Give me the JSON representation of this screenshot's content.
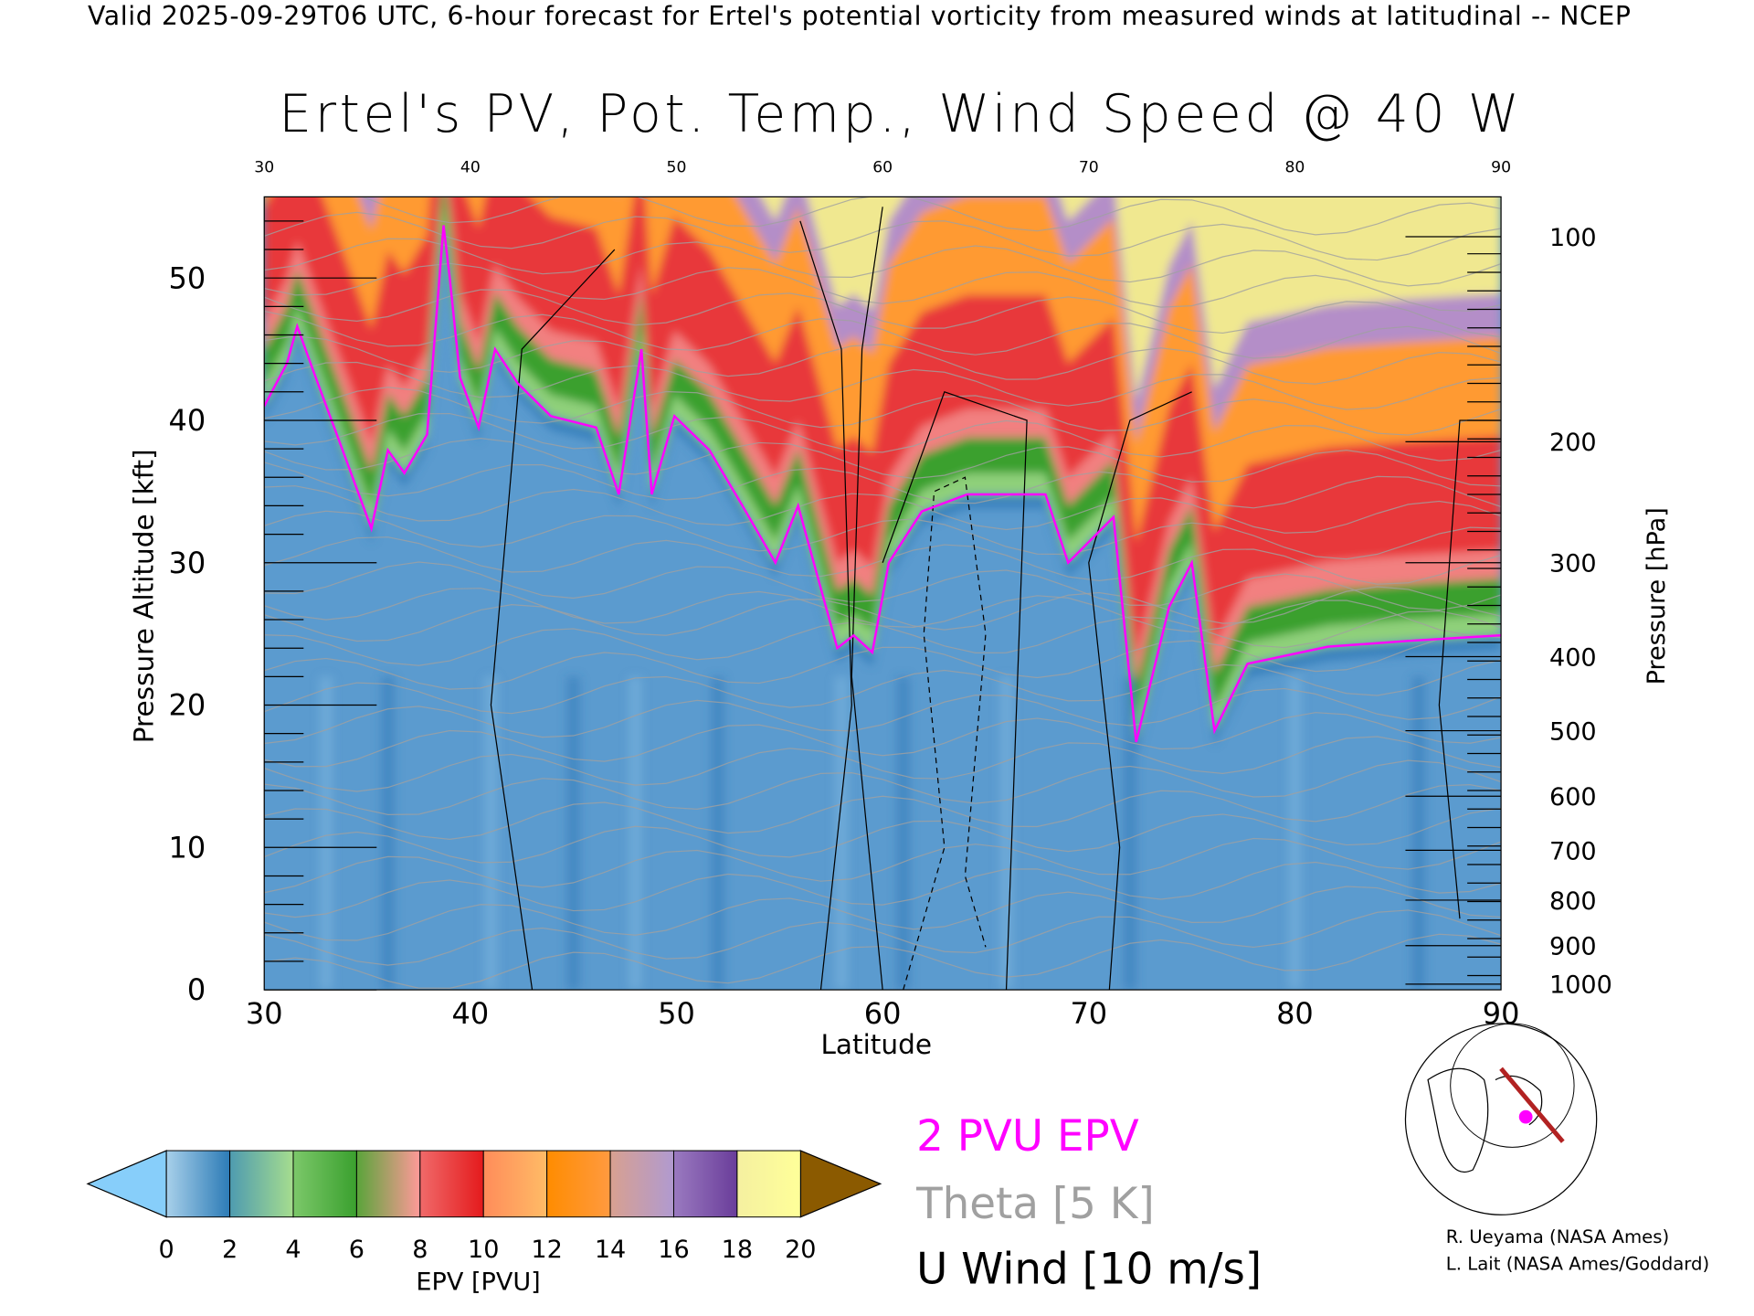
{
  "header": "Valid 2025-09-29T06 UTC, 6-hour forecast for Ertel's potential vorticity from measured winds at latitudinal -- NCEP",
  "legend": {
    "epv": "2 PVU EPV",
    "theta": "Theta [5 K]",
    "uwind": "U Wind [10 m/s]"
  },
  "credits": [
    "R. Ueyama (NASA Ames)",
    "L. Lait (NASA Ames/Goddard)"
  ],
  "colors": {
    "pv_contour": "#ff00ff",
    "theta": "#a0a0a0",
    "track": "#b22222"
  },
  "chart_data": {
    "type": "heatmap",
    "title": "Ertel's PV, Pot. Temp., Wind Speed @ 40 W",
    "xlabel": "Latitude",
    "ylabel": "Pressure Altitude [kft]",
    "y2label": "Pressure [hPa]",
    "xlim": [
      30,
      90
    ],
    "ylim": [
      0,
      55.7
    ],
    "xticks": [
      "30",
      "40",
      "50",
      "60",
      "70",
      "80",
      "90"
    ],
    "yticks": [
      "0",
      "10",
      "20",
      "30",
      "40",
      "50"
    ],
    "y2ticks": [
      {
        "label": "100",
        "kft": 52.9
      },
      {
        "label": "200",
        "kft": 38.5
      },
      {
        "label": "300",
        "kft": 30
      },
      {
        "label": "400",
        "kft": 23.4
      },
      {
        "label": "500",
        "kft": 18.2
      },
      {
        "label": "600",
        "kft": 13.6
      },
      {
        "label": "700",
        "kft": 9.8
      },
      {
        "label": "800",
        "kft": 6.3
      },
      {
        "label": "900",
        "kft": 3.1
      },
      {
        "label": "1000",
        "kft": 0.4
      }
    ],
    "colorbar": {
      "label": "EPV [PVU]",
      "ticks": [
        "0",
        "2",
        "4",
        "6",
        "8",
        "10",
        "12",
        "14",
        "16",
        "18",
        "20"
      ],
      "under_color": "#87cefa",
      "over_color": "#8b5a00",
      "segments": [
        [
          "#a8d0ea",
          "#2c7bb6"
        ],
        [
          "#4e9bb0",
          "#a6dd8e"
        ],
        [
          "#7cc86a",
          "#3aa02e"
        ],
        [
          "#5aa43a",
          "#ff9999"
        ],
        [
          "#f06a6a",
          "#e41a1c"
        ],
        [
          "#ff8c5a",
          "#ffbb66"
        ],
        [
          "#ff8c00",
          "#ff9a40"
        ],
        [
          "#d8a090",
          "#b09ad0"
        ],
        [
          "#9a7ac0",
          "#6a3d9a"
        ],
        [
          "#f5f0a0",
          "#ffff99"
        ],
        [
          "#e8c070",
          "#b07030"
        ]
      ]
    },
    "tropopause_2pvu": [
      [
        30,
        41
      ],
      [
        31.1,
        44
      ],
      [
        31.6,
        46.6
      ],
      [
        32.5,
        43
      ],
      [
        33.6,
        38.7
      ],
      [
        35.2,
        32.4
      ],
      [
        36,
        37.9
      ],
      [
        36.8,
        36.3
      ],
      [
        37.9,
        39
      ],
      [
        38.7,
        53.7
      ],
      [
        39,
        50
      ],
      [
        39.5,
        43
      ],
      [
        40.4,
        39.5
      ],
      [
        41.2,
        45
      ],
      [
        42.3,
        42.6
      ],
      [
        43.9,
        40.3
      ],
      [
        46.1,
        39.5
      ],
      [
        47.2,
        34.8
      ],
      [
        48.3,
        45
      ],
      [
        48.8,
        34.8
      ],
      [
        49.9,
        40.3
      ],
      [
        51.6,
        37.9
      ],
      [
        53.2,
        34
      ],
      [
        54.8,
        30
      ],
      [
        55.9,
        34
      ],
      [
        57.8,
        24
      ],
      [
        58.6,
        24.9
      ],
      [
        59.5,
        23.7
      ],
      [
        60.3,
        30
      ],
      [
        61.9,
        33.6
      ],
      [
        64.1,
        34.8
      ],
      [
        67.9,
        34.8
      ],
      [
        69,
        30
      ],
      [
        71.2,
        33.2
      ],
      [
        72.3,
        17.4
      ],
      [
        73.9,
        26.9
      ],
      [
        75,
        30
      ],
      [
        76.1,
        18.2
      ],
      [
        77.7,
        22.9
      ],
      [
        81.6,
        24.1
      ],
      [
        85.4,
        24.5
      ],
      [
        90,
        24.9
      ]
    ]
  }
}
